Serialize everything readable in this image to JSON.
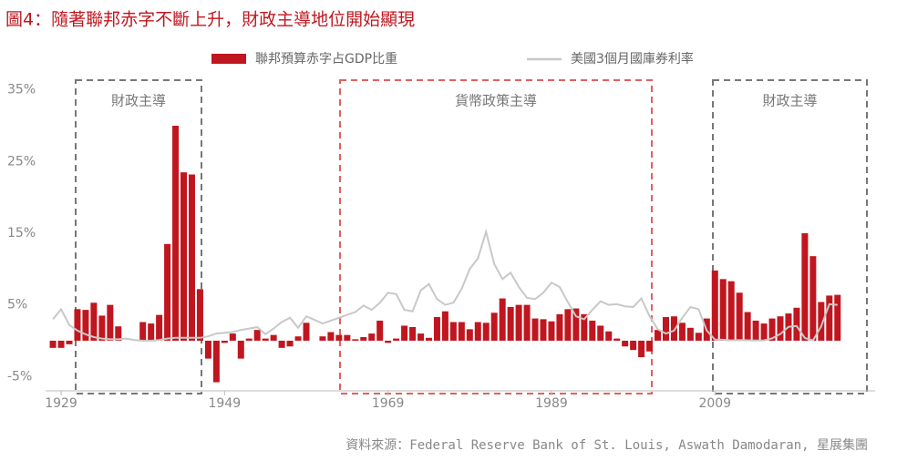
{
  "chart_data": {
    "type": "bar_line",
    "title": "圖4：隨著聯邦赤字不斷上升，財政主導地位開始顯現",
    "source": "資料來源：Federal Reserve Bank of St. Louis, Aswath Damodaran, 星展集團",
    "annotations": [
      {
        "text": "財政主導"
      },
      {
        "text": "貨幣政策主導"
      },
      {
        "text": "財政主導"
      }
    ],
    "x": [
      1928,
      1929,
      1930,
      1931,
      1932,
      1933,
      1934,
      1935,
      1936,
      1937,
      1938,
      1939,
      1940,
      1941,
      1942,
      1943,
      1944,
      1945,
      1946,
      1947,
      1948,
      1949,
      1950,
      1951,
      1952,
      1953,
      1954,
      1955,
      1956,
      1957,
      1958,
      1959,
      1960,
      1961,
      1962,
      1963,
      1964,
      1965,
      1966,
      1967,
      1968,
      1969,
      1970,
      1971,
      1972,
      1973,
      1974,
      1975,
      1976,
      1977,
      1978,
      1979,
      1980,
      1981,
      1982,
      1983,
      1984,
      1985,
      1986,
      1987,
      1988,
      1989,
      1990,
      1991,
      1992,
      1993,
      1994,
      1995,
      1996,
      1997,
      1998,
      1999,
      2000,
      2001,
      2002,
      2003,
      2004,
      2005,
      2006,
      2007,
      2008,
      2009,
      2010,
      2011,
      2012,
      2013,
      2014,
      2015,
      2016,
      2017,
      2018,
      2019,
      2020,
      2021,
      2022,
      2023,
      2024
    ],
    "series": [
      {
        "name": "聯邦預算赤字占GDP比重",
        "color": "#c0161f",
        "kind": "bar",
        "values": [
          -1,
          -1,
          -0.5,
          4.4,
          4.3,
          5.3,
          3.5,
          5.0,
          2.0,
          0,
          0,
          2.6,
          2.4,
          3.6,
          13.5,
          30,
          23.5,
          23.2,
          7.2,
          -2.5,
          -5.8,
          -0.3,
          1.0,
          -2.5,
          0.3,
          1.5,
          0.3,
          0.8,
          -1.0,
          -0.8,
          0.6,
          2.5,
          0,
          0.6,
          1.2,
          0.8,
          0.8,
          0.2,
          0.5,
          1.0,
          2.8,
          -0.3,
          0.3,
          2.1,
          1.9,
          1.0,
          0.4,
          3.3,
          4.1,
          2.6,
          2.6,
          1.6,
          2.6,
          2.5,
          3.9,
          5.9,
          4.7,
          5.0,
          5.0,
          3.1,
          3.0,
          2.7,
          3.7,
          4.4,
          4.5,
          3.7,
          2.8,
          2.1,
          1.3,
          0.3,
          -0.8,
          -1.3,
          -2.3,
          -1.5,
          1.5,
          3.3,
          3.4,
          2.5,
          1.8,
          1.1,
          3.1,
          9.8,
          8.6,
          8.3,
          6.7,
          4.0,
          2.8,
          2.4,
          3.1,
          3.4,
          3.8,
          4.6,
          15.0,
          11.8,
          5.4,
          6.3,
          6.4
        ]
      },
      {
        "name": "美國3個月國庫券利率",
        "color": "#c8c8c8",
        "kind": "line",
        "values": [
          3.0,
          4.4,
          2.2,
          1.4,
          0.9,
          0.5,
          0.3,
          0.2,
          0.2,
          0.3,
          0.1,
          0.0,
          0.0,
          0.1,
          0.3,
          0.4,
          0.4,
          0.4,
          0.4,
          0.6,
          1.0,
          1.1,
          1.2,
          1.5,
          1.7,
          1.9,
          0.9,
          1.7,
          2.6,
          3.2,
          1.8,
          3.4,
          2.9,
          2.4,
          2.8,
          3.2,
          3.6,
          4.0,
          4.9,
          4.3,
          5.3,
          6.7,
          6.5,
          4.3,
          4.1,
          7.0,
          7.9,
          5.8,
          5.0,
          5.3,
          7.2,
          10.0,
          11.5,
          15.2,
          10.7,
          8.6,
          9.5,
          7.5,
          6.0,
          5.8,
          6.7,
          8.1,
          7.5,
          5.4,
          3.4,
          3.0,
          4.3,
          5.5,
          5.0,
          5.1,
          4.8,
          4.7,
          5.9,
          3.4,
          1.6,
          1.0,
          1.4,
          3.2,
          4.7,
          4.4,
          1.4,
          0.15,
          0.14,
          0.05,
          0.09,
          0.06,
          0.03,
          0.05,
          0.32,
          0.93,
          1.94,
          2.06,
          0.37,
          0.05,
          2.0,
          5.1,
          5.0
        ]
      }
    ],
    "xlim": [
      1927.1,
      2028.6
    ],
    "xticks": [
      1929,
      1949,
      1969,
      1989,
      2009
    ],
    "ylim": [
      -7,
      37
    ],
    "yticks": [
      {
        "value": -5,
        "label": "-5%"
      },
      {
        "value": 5,
        "label": "5%"
      },
      {
        "value": 15,
        "label": "15%"
      },
      {
        "value": 25,
        "label": "25%"
      },
      {
        "value": 35,
        "label": "35%"
      }
    ],
    "annotation_color": [
      "#777",
      "#e06060",
      "#777"
    ]
  }
}
